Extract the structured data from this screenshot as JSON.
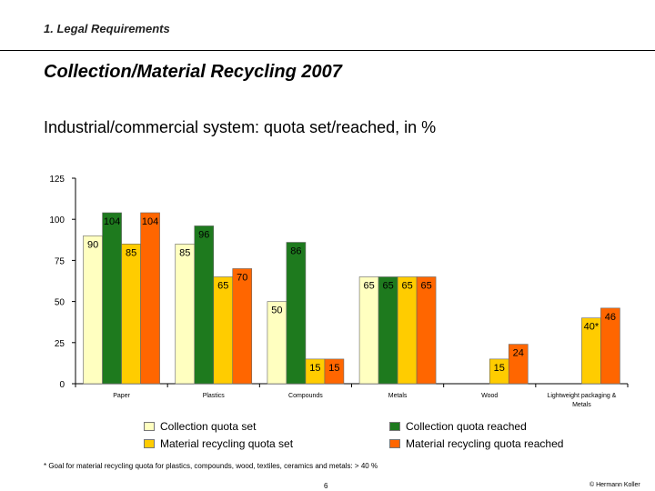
{
  "header": {
    "section": "1. Legal Requirements",
    "title": "Collection/Material Recycling 2007",
    "subtitle": "Industrial/commercial system: quota set/reached, in %"
  },
  "chart_data": {
    "type": "bar",
    "categories": [
      "Paper",
      "Plastics",
      "Compounds",
      "Metals",
      "Wood",
      "Lightweight packaging &\nMetals"
    ],
    "ylim": [
      0,
      125
    ],
    "yticks": [
      0,
      25,
      50,
      75,
      100,
      125
    ],
    "grid": false,
    "legend_position": "bottom",
    "series": [
      {
        "name": "Collection quota set",
        "color": "#ffffc0",
        "values": [
          90,
          85,
          50,
          65,
          null,
          null
        ],
        "labels": [
          "90",
          "85",
          "50",
          "65",
          "",
          ""
        ]
      },
      {
        "name": "Collection quota reached",
        "color": "#1e7a1e",
        "values": [
          104,
          96,
          86,
          65,
          null,
          null
        ],
        "labels": [
          "104",
          "96",
          "86",
          "65",
          "",
          ""
        ]
      },
      {
        "name": "Material recycling quota set",
        "color": "#ffcc00",
        "values": [
          85,
          65,
          15,
          65,
          15,
          40
        ],
        "labels": [
          "85",
          "65",
          "15",
          "65",
          "15",
          "40*"
        ]
      },
      {
        "name": "Material recycling quota reached",
        "color": "#ff6600",
        "values": [
          104,
          70,
          15,
          65,
          24,
          46
        ],
        "labels": [
          "104",
          "70",
          "15",
          "65",
          "24",
          "46"
        ]
      }
    ]
  },
  "footer": {
    "footnote": "* Goal for material recycling quota for plastics, compounds, wood, textiles, ceramics and metals: > 40 %",
    "page": "6",
    "copyright": "© Hermann Koller"
  }
}
